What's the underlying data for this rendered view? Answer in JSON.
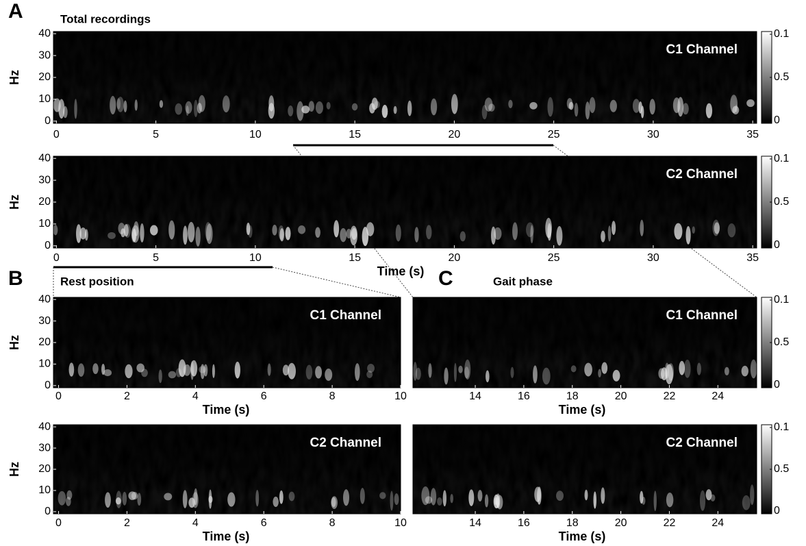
{
  "panels": [
    {
      "letter": "A",
      "title": "Total recordings"
    },
    {
      "letter": "B",
      "title": "Rest position"
    },
    {
      "letter": "C",
      "title": "Gait phase"
    }
  ],
  "plots": [
    {
      "channel": "C1 Channel",
      "y_label": "Hz",
      "xlim": [
        -0.15,
        35.2
      ],
      "ylim": [
        -1,
        41
      ],
      "xticks": [
        0,
        5,
        10,
        15,
        20,
        25,
        30,
        35
      ],
      "yticks": [
        0,
        10,
        20,
        30,
        40
      ],
      "colorbar_ticks": [
        0.1,
        0.5,
        0
      ]
    },
    {
      "channel": "C2 Channel",
      "y_label": "Hz",
      "x_label": "Time (s)",
      "xlim": [
        -0.15,
        35.2
      ],
      "ylim": [
        -1,
        41
      ],
      "xticks": [
        0,
        5,
        10,
        15,
        20,
        25,
        30,
        35
      ],
      "yticks": [
        0,
        10,
        20,
        30,
        40
      ],
      "colorbar_ticks": [
        0.1,
        0.5,
        0
      ]
    },
    {
      "channel": "C1 Channel",
      "y_label": "Hz",
      "x_label": "Time (s)",
      "xlim": [
        -0.15,
        10
      ],
      "ylim": [
        -1,
        41
      ],
      "xticks": [
        0,
        2,
        4,
        6,
        8,
        10
      ],
      "yticks": [
        0,
        10,
        20,
        30,
        40
      ]
    },
    {
      "channel": "C2 Channel",
      "y_label": "Hz",
      "x_label": "Time (s)",
      "xlim": [
        -0.15,
        10
      ],
      "ylim": [
        -1,
        41
      ],
      "xticks": [
        0,
        2,
        4,
        6,
        8,
        10
      ],
      "yticks": [
        0,
        10,
        20,
        30,
        40
      ]
    },
    {
      "channel": "C1 Channel",
      "x_label": "Time (s)",
      "xlim": [
        11.43,
        25.6
      ],
      "ylim": [
        -1,
        41
      ],
      "xticks": [
        14,
        16,
        18,
        20,
        22,
        24
      ],
      "colorbar_ticks": [
        0.1,
        0.5,
        0
      ]
    },
    {
      "channel": "C2 Channel",
      "x_label": "Time (s)",
      "xlim": [
        11.43,
        25.6
      ],
      "ylim": [
        -1,
        41
      ],
      "xticks": [
        14,
        16,
        18,
        20,
        22,
        24
      ],
      "colorbar_ticks": [
        0.1,
        0.5,
        0
      ]
    }
  ]
}
